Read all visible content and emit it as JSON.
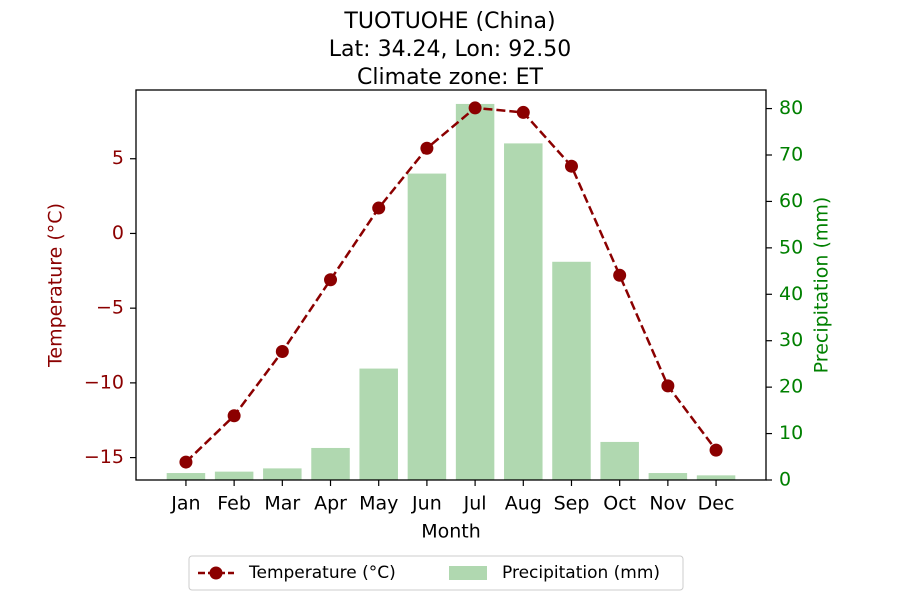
{
  "chart_data": {
    "type": "bar+line",
    "title_lines": [
      "TUOTUOHE (China)",
      "Lat: 34.24, Lon: 92.50",
      "Climate zone: ET"
    ],
    "xlabel": "Month",
    "categories": [
      "Jan",
      "Feb",
      "Mar",
      "Apr",
      "May",
      "Jun",
      "Jul",
      "Aug",
      "Sep",
      "Oct",
      "Nov",
      "Dec"
    ],
    "series": [
      {
        "name": "Temperature (°C)",
        "kind": "line",
        "axis": "left",
        "style": "dashed with circle markers",
        "color": "#8b0000",
        "values": [
          -15.3,
          -12.2,
          -7.9,
          -3.1,
          1.7,
          5.7,
          8.4,
          8.1,
          4.5,
          -2.8,
          -10.2,
          -14.5
        ]
      },
      {
        "name": "Precipitation (mm)",
        "kind": "bar",
        "axis": "right",
        "color": "#b0d8b0",
        "values": [
          1.5,
          1.8,
          2.5,
          6.9,
          24.0,
          66.0,
          81.0,
          72.5,
          47.0,
          8.2,
          1.5,
          1.0
        ]
      }
    ],
    "y_left": {
      "label": "Temperature (°C)",
      "color": "#8b0000",
      "ticks": [
        -15,
        -10,
        -5,
        0,
        5
      ],
      "tick_labels": [
        "−15",
        "−10",
        "−5",
        "0",
        "5"
      ],
      "range": [
        -16.5,
        9.6
      ]
    },
    "y_right": {
      "label": "Precipitation (mm)",
      "color": "#008000",
      "ticks": [
        0,
        10,
        20,
        30,
        40,
        50,
        60,
        70,
        80
      ],
      "tick_labels": [
        "0",
        "10",
        "20",
        "30",
        "40",
        "50",
        "60",
        "70",
        "80"
      ],
      "range": [
        0,
        84
      ]
    },
    "grid": false,
    "legend_position": "bottom-center"
  }
}
